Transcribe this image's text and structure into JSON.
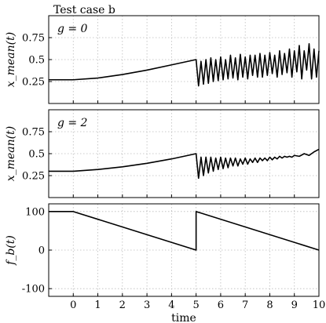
{
  "figure_title": "Test case b",
  "x_label": "time",
  "chart_data": [
    {
      "type": "line",
      "annotation": "g = 0",
      "ylabel": "x_mean(t)",
      "xlim": [
        -1,
        10
      ],
      "ylim": [
        0,
        1
      ],
      "xticks": [
        0,
        1,
        2,
        3,
        4,
        5,
        6,
        7,
        8,
        9,
        10
      ],
      "yticks": [
        0.25,
        0.5,
        0.75
      ],
      "grid": true,
      "series": [
        {
          "color": "#000000",
          "x": [
            -1,
            0,
            1,
            2,
            3,
            4,
            5,
            5.0,
            5.1,
            5.2,
            5.3,
            5.4,
            5.5,
            5.6,
            5.7,
            5.8,
            5.9,
            6.0,
            6.1,
            6.2,
            6.3,
            6.4,
            6.5,
            6.6,
            6.7,
            6.8,
            6.9,
            7.0,
            7.1,
            7.2,
            7.3,
            7.4,
            7.5,
            7.6,
            7.7,
            7.8,
            7.9,
            8.0,
            8.1,
            8.2,
            8.3,
            8.4,
            8.5,
            8.6,
            8.7,
            8.8,
            8.9,
            9.0,
            9.1,
            9.2,
            9.3,
            9.4,
            9.5,
            9.6,
            9.7,
            9.8,
            9.9,
            10.0
          ],
          "y": [
            0.27,
            0.27,
            0.29,
            0.33,
            0.38,
            0.44,
            0.5,
            0.5,
            0.2,
            0.48,
            0.22,
            0.5,
            0.23,
            0.52,
            0.25,
            0.5,
            0.26,
            0.53,
            0.27,
            0.5,
            0.28,
            0.55,
            0.29,
            0.52,
            0.27,
            0.56,
            0.3,
            0.53,
            0.28,
            0.55,
            0.32,
            0.55,
            0.3,
            0.57,
            0.3,
            0.55,
            0.32,
            0.58,
            0.34,
            0.55,
            0.3,
            0.6,
            0.33,
            0.57,
            0.35,
            0.62,
            0.3,
            0.6,
            0.36,
            0.66,
            0.28,
            0.6,
            0.38,
            0.68,
            0.28,
            0.62,
            0.3,
            0.6
          ]
        }
      ]
    },
    {
      "type": "line",
      "annotation": "g = 2",
      "ylabel": "x_mean(t)",
      "xlim": [
        -1,
        10
      ],
      "ylim": [
        0,
        1
      ],
      "xticks": [
        0,
        1,
        2,
        3,
        4,
        5,
        6,
        7,
        8,
        9,
        10
      ],
      "yticks": [
        0.25,
        0.5,
        0.75
      ],
      "grid": true,
      "series": [
        {
          "color": "#000000",
          "x": [
            -1,
            0,
            1,
            2,
            3,
            4,
            5,
            5.0,
            5.1,
            5.2,
            5.3,
            5.4,
            5.5,
            5.6,
            5.7,
            5.8,
            5.9,
            6.0,
            6.1,
            6.2,
            6.3,
            6.4,
            6.5,
            6.6,
            6.7,
            6.8,
            6.9,
            7.0,
            7.1,
            7.2,
            7.3,
            7.4,
            7.5,
            7.6,
            7.7,
            7.8,
            7.9,
            8.0,
            8.1,
            8.2,
            8.3,
            8.4,
            8.5,
            8.6,
            8.7,
            8.8,
            8.9,
            9.0,
            9.2,
            9.4,
            9.6,
            9.8,
            10.0
          ],
          "y": [
            0.3,
            0.3,
            0.32,
            0.35,
            0.39,
            0.44,
            0.5,
            0.5,
            0.22,
            0.46,
            0.25,
            0.46,
            0.28,
            0.46,
            0.3,
            0.45,
            0.32,
            0.46,
            0.33,
            0.45,
            0.34,
            0.45,
            0.36,
            0.45,
            0.36,
            0.44,
            0.38,
            0.45,
            0.38,
            0.44,
            0.4,
            0.45,
            0.4,
            0.45,
            0.42,
            0.45,
            0.42,
            0.46,
            0.43,
            0.46,
            0.44,
            0.47,
            0.45,
            0.47,
            0.46,
            0.47,
            0.46,
            0.48,
            0.47,
            0.5,
            0.48,
            0.52,
            0.55
          ]
        }
      ]
    },
    {
      "type": "line",
      "ylabel": "f_b(t)",
      "xlim": [
        -1,
        10
      ],
      "ylim": [
        -120,
        120
      ],
      "xticks": [
        0,
        1,
        2,
        3,
        4,
        5,
        6,
        7,
        8,
        9,
        10
      ],
      "yticks": [
        -100,
        0,
        100
      ],
      "grid": true,
      "series": [
        {
          "color": "#000000",
          "x": [
            -1,
            0,
            5,
            5,
            10
          ],
          "y": [
            100,
            100,
            0,
            100,
            0
          ]
        }
      ]
    }
  ]
}
